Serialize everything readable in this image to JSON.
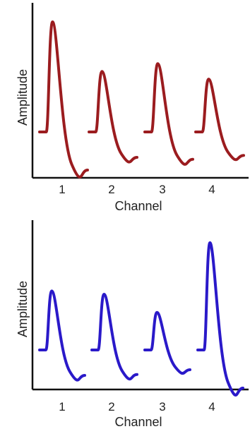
{
  "chart_data": [
    {
      "type": "line",
      "title": "",
      "xlabel": "Channel",
      "ylabel": "Amplitude",
      "categories": [
        "1",
        "2",
        "3",
        "4"
      ],
      "color": "#9b1c1f",
      "peak_amplitude": [
        1.0,
        0.55,
        0.62,
        0.48
      ],
      "baseline_amplitude": [
        0.0,
        0.0,
        0.0,
        0.0
      ]
    },
    {
      "type": "line",
      "title": "",
      "xlabel": "Channel",
      "ylabel": "Amplitude",
      "categories": [
        "1",
        "2",
        "3",
        "4"
      ],
      "color": "#2a19c9",
      "peak_amplitude": [
        0.55,
        0.52,
        0.35,
        1.0
      ],
      "baseline_amplitude": [
        0.0,
        0.0,
        0.0,
        0.0
      ]
    }
  ]
}
